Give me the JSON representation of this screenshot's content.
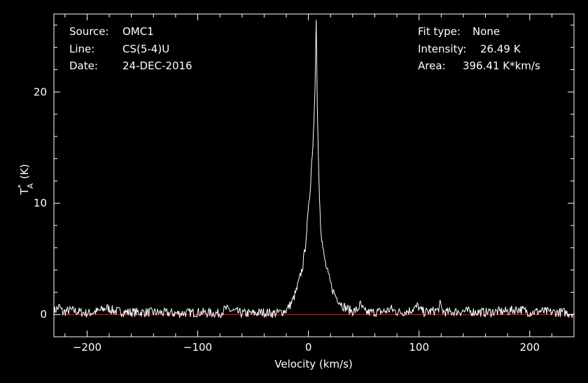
{
  "header": {
    "source_label": "Source:",
    "source_value": "OMC1",
    "line_label": "Line:",
    "line_value": "CS(5-4)U",
    "date_label": "Date:",
    "date_value": "24-DEC-2016",
    "fit_label": "Fit type:",
    "fit_value": "None",
    "intensity_label": "Intensity:",
    "intensity_value": "26.49 K",
    "area_label": "Area:",
    "area_value": "396.41 K*km/s"
  },
  "colors": {
    "background": "#000000",
    "axes": "#ffffff",
    "spectrum": "#ffffff",
    "baseline": "#c0392b"
  },
  "chart_data": {
    "type": "line",
    "xlabel": "Velocity (km/s)",
    "ylabel_main": "T",
    "ylabel_sup": "*",
    "ylabel_sub": "A",
    "ylabel_unit": "(K)",
    "xlim": [
      -230,
      240
    ],
    "ylim": [
      -2,
      27
    ],
    "x_ticks": [
      -200,
      -100,
      0,
      100,
      200
    ],
    "x_tick_labels": [
      "−200",
      "−100",
      "0",
      "100",
      "200"
    ],
    "y_ticks": [
      0,
      10,
      20
    ],
    "y_tick_labels": [
      "0",
      "10",
      "20"
    ],
    "baseline_y": 0,
    "grid": false,
    "series": [
      {
        "x": [
          -230,
          -225,
          -222,
          -215,
          -200,
          -190,
          -182,
          -175,
          -160,
          -140,
          -120,
          -100,
          -80,
          -75,
          -60,
          -50,
          -40,
          -30,
          -25,
          -20,
          -17,
          -14,
          -11,
          -8,
          -5,
          -3,
          -1,
          1,
          2,
          3,
          4,
          5,
          6,
          6.5,
          7,
          7.5,
          8,
          8.5,
          9,
          9.5,
          10,
          11,
          12,
          13,
          14,
          16,
          18,
          20,
          22,
          25,
          28,
          31,
          35,
          40,
          44,
          47,
          49,
          51,
          55,
          60,
          70,
          75,
          78,
          82,
          90,
          97,
          99,
          101,
          105,
          112,
          117,
          119,
          121,
          125,
          140,
          160,
          180,
          190,
          200,
          210,
          220,
          230,
          240
        ],
        "y": [
          0.3,
          0.7,
          0.2,
          0.4,
          0.1,
          0.3,
          0.6,
          0.3,
          0.2,
          0.2,
          0.1,
          0.2,
          0.1,
          0.5,
          0.1,
          0.1,
          0.2,
          0.1,
          0.2,
          0.4,
          0.8,
          1.3,
          2.1,
          3.2,
          4.4,
          6.0,
          8.2,
          10.5,
          12.0,
          13.8,
          15.2,
          17.5,
          20.5,
          23.5,
          26.49,
          23.0,
          19.0,
          16.5,
          14.3,
          12.3,
          10.5,
          8.2,
          6.9,
          6.0,
          5.3,
          4.3,
          3.5,
          2.8,
          2.2,
          1.6,
          1.2,
          0.8,
          0.5,
          0.3,
          0.4,
          0.9,
          0.5,
          0.2,
          0.2,
          0.2,
          0.3,
          0.5,
          0.3,
          0.2,
          0.3,
          0.6,
          0.8,
          0.4,
          0.2,
          0.3,
          0.4,
          0.9,
          0.3,
          0.2,
          0.3,
          0.2,
          0.3,
          0.5,
          0.2,
          0.3,
          0.2,
          0.2,
          0.1
        ]
      }
    ]
  }
}
